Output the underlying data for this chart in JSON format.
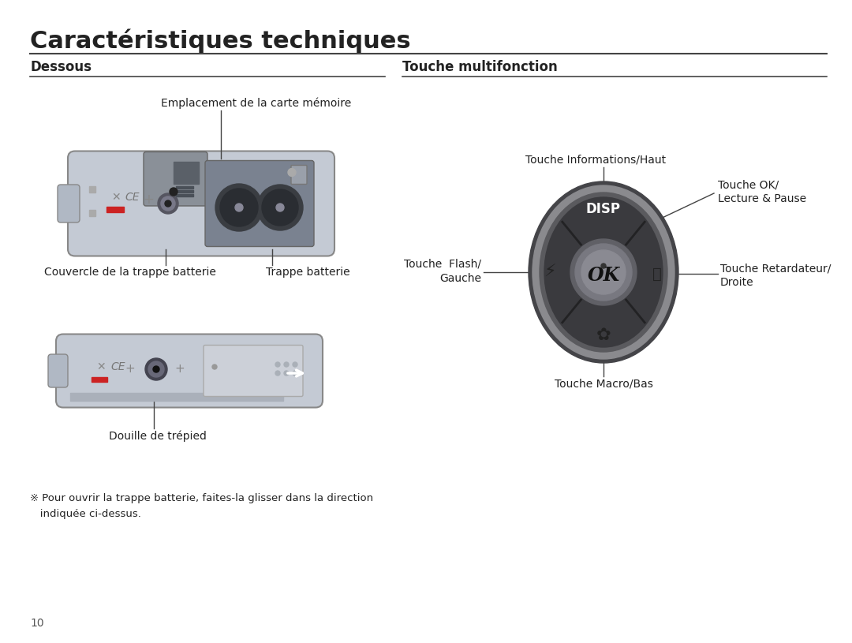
{
  "title": "Caractéristiques techniques",
  "title_fontsize": 22,
  "title_bold": true,
  "title_color": "#222222",
  "bg_color": "#ffffff",
  "page_number": "10",
  "section_left": "Dessous",
  "section_right": "Touche multifonction",
  "label_card": "Emplacement de la carte mémoire",
  "label_cover": "Couvercle de la trappe batterie",
  "label_trappe": "Trappe batterie",
  "label_tripod": "Douille de trépied",
  "label_disp_top": "Touche Informations/Haut",
  "label_ok_line1": "Touche OK/",
  "label_ok_line2": "Lecture & Pause",
  "label_flash_line1": "Touche  Flash/",
  "label_flash_line2": "Gauche",
  "label_retard_line1": "Touche Retardateur/",
  "label_retard_line2": "Droite",
  "label_macro": "Touche Macro/Bas",
  "note_text": "※ Pour ouvrir la trappe batterie, faites-la glisser dans la direction\n   indiquée ci-dessus.",
  "line_color": "#444444",
  "text_color": "#222222"
}
